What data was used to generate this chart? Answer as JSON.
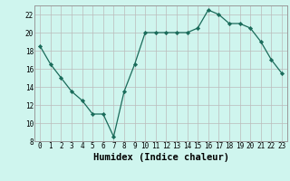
{
  "x": [
    0,
    1,
    2,
    3,
    4,
    5,
    6,
    7,
    8,
    9,
    10,
    11,
    12,
    13,
    14,
    15,
    16,
    17,
    18,
    19,
    20,
    21,
    22,
    23
  ],
  "y": [
    18.5,
    16.5,
    15.0,
    13.5,
    12.5,
    11.0,
    11.0,
    8.5,
    13.5,
    16.5,
    20.0,
    20.0,
    20.0,
    20.0,
    20.0,
    20.5,
    22.5,
    22.0,
    21.0,
    21.0,
    20.5,
    19.0,
    17.0,
    15.5
  ],
  "xlabel": "Humidex (Indice chaleur)",
  "ylim": [
    8,
    23
  ],
  "xlim": [
    -0.5,
    23.5
  ],
  "yticks": [
    8,
    10,
    12,
    14,
    16,
    18,
    20,
    22
  ],
  "xticks": [
    0,
    1,
    2,
    3,
    4,
    5,
    6,
    7,
    8,
    9,
    10,
    11,
    12,
    13,
    14,
    15,
    16,
    17,
    18,
    19,
    20,
    21,
    22,
    23
  ],
  "line_color": "#1a6b5a",
  "marker": "D",
  "marker_size": 2.2,
  "bg_color": "#cff5ee",
  "grid_color": "#bbbbbb",
  "font_family": "monospace",
  "tick_fontsize": 5.5,
  "xlabel_fontsize": 7.5
}
